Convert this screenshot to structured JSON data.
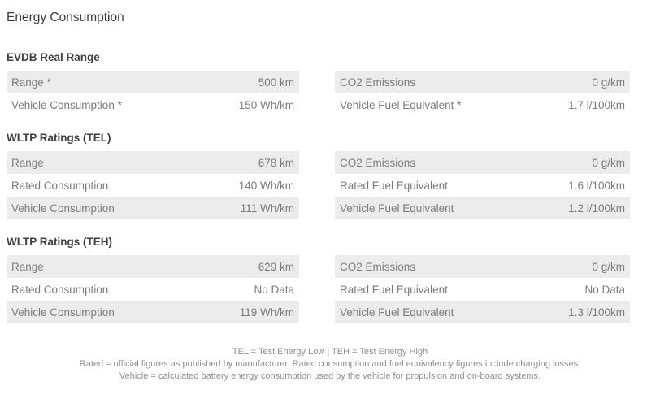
{
  "title": "Energy Consumption",
  "sections": [
    {
      "heading": "EVDB Real Range",
      "left_rows": [
        {
          "label": "Range *",
          "value": "500 km"
        },
        {
          "label": "Vehicle Consumption *",
          "value": "150 Wh/km"
        }
      ],
      "right_rows": [
        {
          "label": "CO2 Emissions",
          "value": "0 g/km"
        },
        {
          "label": "Vehicle Fuel Equivalent *",
          "value": "1.7 l/100km"
        }
      ]
    },
    {
      "heading": "WLTP Ratings (TEL)",
      "left_rows": [
        {
          "label": "Range",
          "value": "678 km"
        },
        {
          "label": "Rated Consumption",
          "value": "140 Wh/km"
        },
        {
          "label": "Vehicle Consumption",
          "value": "111 Wh/km"
        }
      ],
      "right_rows": [
        {
          "label": "CO2 Emissions",
          "value": "0 g/km"
        },
        {
          "label": "Rated Fuel Equivalent",
          "value": "1.6 l/100km"
        },
        {
          "label": "Vehicle Fuel Equivalent",
          "value": "1.2 l/100km"
        }
      ]
    },
    {
      "heading": "WLTP Ratings (TEH)",
      "left_rows": [
        {
          "label": "Range",
          "value": "629 km"
        },
        {
          "label": "Rated Consumption",
          "value": "No Data"
        },
        {
          "label": "Vehicle Consumption",
          "value": "119 Wh/km"
        }
      ],
      "right_rows": [
        {
          "label": "CO2 Emissions",
          "value": "0 g/km"
        },
        {
          "label": "Rated Fuel Equivalent",
          "value": "No Data"
        },
        {
          "label": "Vehicle Fuel Equivalent",
          "value": "1.3 l/100km"
        }
      ]
    }
  ],
  "footnotes": [
    "TEL = Test Energy Low | TEH = Test Energy High",
    "Rated = official figures as published by manufacturer. Rated consumption and fuel equivalency figures include charging losses.",
    "Vehicle = calculated battery energy consumption used by the vehicle for propulsion and on-board systems."
  ],
  "colors": {
    "row_stripe_bg": "#ececec",
    "row_text": "#7b7b7b",
    "heading_text": "#3f3f3f",
    "footnote_text": "#8f8f8f",
    "background": "#ffffff"
  }
}
